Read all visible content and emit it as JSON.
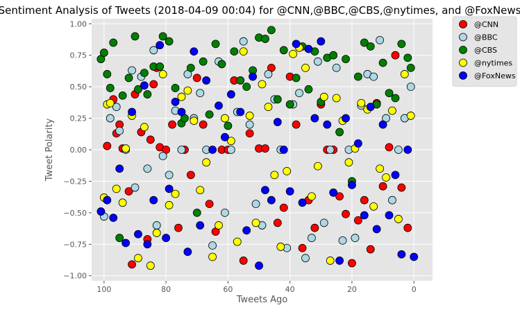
{
  "chart_data": {
    "type": "scatter",
    "title": "Sentiment Analysis of Tweets (2018-04-09 00:04) for @CNN,@BBC,@CBS,@nytimes, and @FoxNews",
    "xlabel": "Tweets Ago",
    "ylabel": "Tweet Polarity",
    "xlim": [
      104,
      -6
    ],
    "ylim": [
      -1.04,
      1.04
    ],
    "x_reversed": true,
    "x_ticks": [
      100,
      80,
      60,
      40,
      20,
      0
    ],
    "x_tick_labels": [
      "100",
      "80",
      "60",
      "40",
      "20",
      "0"
    ],
    "y_ticks": [
      1.0,
      0.75,
      0.5,
      0.25,
      0.0,
      -0.25,
      -0.5,
      -0.75,
      -1.0
    ],
    "y_tick_labels": [
      "1.00",
      "0.75",
      "0.50",
      "0.25",
      "0.00",
      "−0.25",
      "−0.50",
      "−0.75",
      "−1.00"
    ],
    "grid": true,
    "style": "ggplot",
    "legend_position": "outside-top-right",
    "series": [
      {
        "name": "@CNN",
        "color": "#ff0000",
        "x": [
          99,
          97,
          96,
          95,
          94,
          92,
          91,
          90,
          88,
          86,
          85,
          84,
          83,
          82,
          80,
          78,
          76,
          74,
          72,
          70,
          68,
          66,
          64,
          62,
          60,
          58,
          55,
          53,
          50,
          48,
          46,
          44,
          42,
          40,
          38,
          36,
          34,
          32,
          30,
          28,
          26,
          24,
          22,
          20,
          18,
          16,
          14,
          12,
          10,
          8,
          6,
          4,
          2
        ],
        "y": [
          0.03,
          0.4,
          0.13,
          0.2,
          0.01,
          -0.33,
          -0.91,
          0.44,
          0.14,
          -0.71,
          0.08,
          0.52,
          0.65,
          0.02,
          0.0,
          0.2,
          -0.62,
          0.0,
          -0.2,
          0.57,
          0.2,
          -0.43,
          -0.65,
          0.0,
          0.0,
          0.55,
          -0.88,
          0.13,
          0.01,
          0.01,
          0.65,
          -0.58,
          -0.46,
          0.58,
          0.2,
          -0.78,
          -0.4,
          -0.62,
          0.36,
          0.0,
          0.0,
          -0.37,
          -0.51,
          -0.9,
          -0.56,
          -0.4,
          -0.79,
          0.37,
          -0.29,
          0.02,
          0.75,
          -0.3,
          -0.62
        ]
      },
      {
        "name": "@BBC",
        "color": "#add8e6",
        "x": [
          100,
          98,
          96,
          95,
          93,
          91,
          90,
          88,
          86,
          84,
          83,
          81,
          79,
          77,
          75,
          73,
          71,
          69,
          67,
          65,
          63,
          61,
          59,
          57,
          55,
          53,
          51,
          49,
          47,
          45,
          43,
          41,
          39,
          37,
          35,
          33,
          31,
          29,
          27,
          25,
          23,
          21,
          19,
          17,
          15,
          13,
          11,
          9,
          7,
          5,
          3,
          1
        ],
        "y": [
          -0.53,
          0.25,
          0.34,
          0.15,
          0.0,
          0.63,
          -0.3,
          0.58,
          -0.15,
          0.79,
          -0.6,
          -0.05,
          -0.2,
          0.31,
          0.0,
          0.6,
          0.25,
          0.45,
          0.0,
          -0.76,
          0.7,
          -0.5,
          0.0,
          0.3,
          0.86,
          0.2,
          -0.43,
          -0.6,
          0.6,
          0.4,
          0.0,
          -0.78,
          0.36,
          0.45,
          -0.86,
          -0.7,
          0.7,
          -0.58,
          0.0,
          0.65,
          -0.72,
          0.0,
          -0.7,
          0.35,
          0.6,
          0.58,
          0.87,
          0.25,
          -0.4,
          0.0,
          0.25,
          0.5
        ]
      },
      {
        "name": "@CBS",
        "color": "#008000",
        "x": [
          101,
          100,
          99,
          98,
          97,
          95,
          94,
          92,
          90,
          89,
          87,
          86,
          84,
          82,
          81,
          79,
          77,
          75,
          74,
          72,
          70,
          68,
          66,
          64,
          62,
          60,
          58,
          56,
          54,
          52,
          50,
          48,
          46,
          44,
          42,
          40,
          38,
          36,
          34,
          32,
          30,
          28,
          26,
          24,
          22,
          20,
          18,
          16,
          14,
          12,
          10,
          8,
          6,
          4,
          2,
          1
        ],
        "y": [
          0.72,
          0.77,
          0.6,
          0.49,
          0.85,
          -0.7,
          0.43,
          0.57,
          0.9,
          0.48,
          0.61,
          0.44,
          0.66,
          0.66,
          0.9,
          0.86,
          0.49,
          0.21,
          0.25,
          0.65,
          -0.5,
          0.7,
          0.28,
          0.84,
          0.68,
          0.19,
          0.78,
          0.55,
          0.5,
          0.63,
          0.89,
          0.88,
          0.95,
          0.4,
          0.79,
          0.36,
          0.57,
          0.82,
          0.48,
          0.78,
          0.38,
          0.73,
          0.75,
          0.14,
          0.72,
          -0.25,
          0.58,
          0.85,
          0.82,
          0.36,
          0.69,
          0.45,
          0.41,
          0.84,
          0.73,
          0.65
        ]
      },
      {
        "name": "@nytimes",
        "color": "#ffff00",
        "x": [
          100,
          99,
          98,
          96,
          94,
          93,
          91,
          89,
          87,
          85,
          83,
          81,
          79,
          77,
          75,
          73,
          71,
          69,
          67,
          65,
          63,
          61,
          59,
          57,
          55,
          53,
          51,
          49,
          47,
          45,
          43,
          41,
          39,
          37,
          35,
          33,
          31,
          29,
          27,
          25,
          23,
          21,
          19,
          17,
          15,
          13,
          11,
          9,
          7,
          5,
          3,
          1
        ],
        "y": [
          -0.38,
          0.36,
          0.37,
          -0.31,
          -0.42,
          0.01,
          0.27,
          -0.86,
          0.18,
          -0.92,
          -0.66,
          0.6,
          -0.44,
          -0.35,
          0.42,
          0.47,
          0.23,
          -0.32,
          -0.1,
          -0.85,
          -0.6,
          0.25,
          0.07,
          -0.73,
          0.78,
          0.27,
          -0.58,
          0.52,
          0.34,
          -0.2,
          -0.77,
          -0.17,
          0.76,
          0.81,
          0.65,
          -0.37,
          -0.13,
          0.42,
          -0.88,
          0.41,
          0.23,
          -0.1,
          0.01,
          0.37,
          0.32,
          -0.45,
          -0.15,
          -0.22,
          0.31,
          -0.55,
          0.6,
          0.27
        ]
      },
      {
        "name": "@FoxNews",
        "color": "#0000ff",
        "x": [
          101,
          99,
          97,
          95,
          93,
          91,
          89,
          87,
          86,
          84,
          82,
          80,
          79,
          77,
          75,
          73,
          71,
          69,
          67,
          65,
          63,
          61,
          59,
          56,
          54,
          52,
          50,
          48,
          46,
          44,
          42,
          40,
          38,
          36,
          34,
          32,
          30,
          28,
          26,
          24,
          22,
          20,
          18,
          16,
          14,
          12,
          10,
          8,
          6,
          4,
          2,
          0
        ],
        "y": [
          -0.49,
          -0.4,
          -0.54,
          -0.15,
          -0.74,
          0.3,
          -0.67,
          0.51,
          -0.75,
          -0.4,
          0.83,
          -0.7,
          -0.31,
          0.38,
          0.3,
          -0.81,
          0.78,
          -0.6,
          0.55,
          0.0,
          0.35,
          0.1,
          0.44,
          0.3,
          -0.64,
          0.58,
          -0.92,
          -0.32,
          -0.4,
          0.22,
          0.0,
          -0.33,
          0.84,
          -0.42,
          0.8,
          0.25,
          0.86,
          0.2,
          -0.34,
          -0.88,
          0.25,
          -0.28,
          0.05,
          -0.52,
          0.34,
          -0.63,
          0.2,
          -0.52,
          -0.2,
          -0.83,
          0.0,
          -0.85
        ]
      }
    ]
  }
}
